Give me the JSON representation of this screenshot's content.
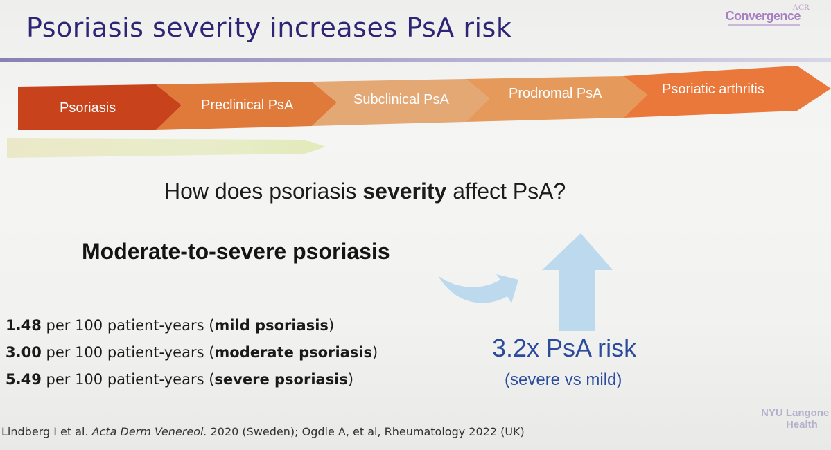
{
  "slide": {
    "title": "Psoriasis severity increases PsA risk",
    "logo": {
      "top": "ACR",
      "main": "Convergence"
    },
    "steps": [
      {
        "label": "Psoriasis",
        "color": "#c8431c"
      },
      {
        "label": "Preclinical PsA",
        "color": "#e07a3a"
      },
      {
        "label": "Subclinical PsA",
        "color": "#e4a875"
      },
      {
        "label": "Prodromal PsA",
        "color": "#e59a5c"
      },
      {
        "label": "Psoriatic arthritis",
        "color": "#e9783a"
      }
    ],
    "question": {
      "before": "How does psoriasis ",
      "bold": "severity",
      "after": " affect PsA?"
    },
    "subheading": "Moderate-to-severe psoriasis",
    "rates": [
      {
        "value": "1.48",
        "mid": " per 100 patient-years (",
        "label": "mild psoriasis",
        "end": ")"
      },
      {
        "value": "3.00",
        "mid": " per 100 patient-years (",
        "label": "moderate psoriasis",
        "end": ")"
      },
      {
        "value": "5.49",
        "mid": " per 100 patient-years (",
        "label": "severe psoriasis",
        "end": ")"
      }
    ],
    "risk": {
      "main": "3.2x PsA risk",
      "sub": "(severe vs mild)"
    },
    "reference": {
      "part1": "Lindberg I et al. ",
      "journal": "Acta Derm Venereol.",
      "part2": " 2020 (Sweden); Ogdie A, et al, Rheumatology 2022 (UK)"
    },
    "footer_logo": {
      "line1": "NYU Langone",
      "line2": "Health"
    },
    "colors": {
      "title": "#2e2575",
      "risk": "#2b4b9c",
      "arrow": "#bcd9ee"
    }
  }
}
